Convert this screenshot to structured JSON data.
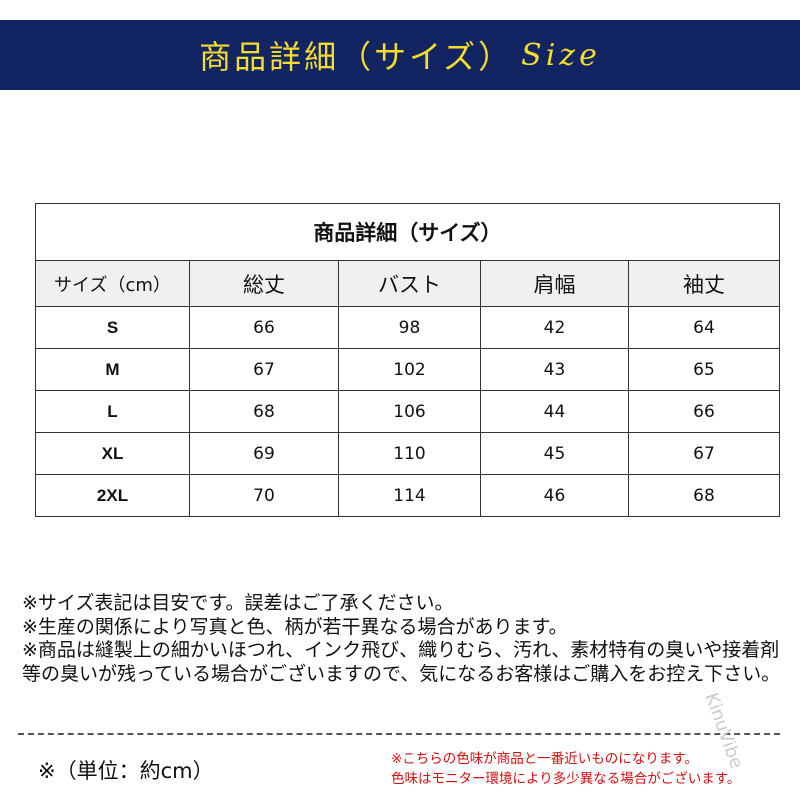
{
  "banner": {
    "title": "商品詳細（サイズ）",
    "size_word": "Size",
    "bg": "#132462",
    "fg": "#f5dd2a"
  },
  "table": {
    "title": "商品詳細（サイズ）",
    "headers": [
      "サイズ（cm）",
      "総丈",
      "バスト",
      "肩幅",
      "袖丈"
    ],
    "rows": [
      [
        "S",
        "66",
        "98",
        "42",
        "64"
      ],
      [
        "M",
        "67",
        "102",
        "43",
        "65"
      ],
      [
        "L",
        "68",
        "106",
        "44",
        "66"
      ],
      [
        "XL",
        "69",
        "110",
        "45",
        "67"
      ],
      [
        "2XL",
        "70",
        "114",
        "46",
        "68"
      ]
    ]
  },
  "notes": [
    "※サイズ表記は目安です。誤差はご了承ください。",
    "※生産の関係により写真と色、柄が若干異なる場合があります。",
    "※商品は縫製上の細かいほつれ、インク飛び、織りむら、汚れ、素材特有の臭いや接着剤等の臭いが残っている場合がございますので、気になるお客様はご購入をお控え下さい。"
  ],
  "unit": "※（単位：約cm）",
  "color_notes": [
    "※こちらの色味が商品と一番近いものになります。",
    "色味はモニター環境により多少異なる場合がございます。"
  ],
  "watermark": "KinuVibe"
}
